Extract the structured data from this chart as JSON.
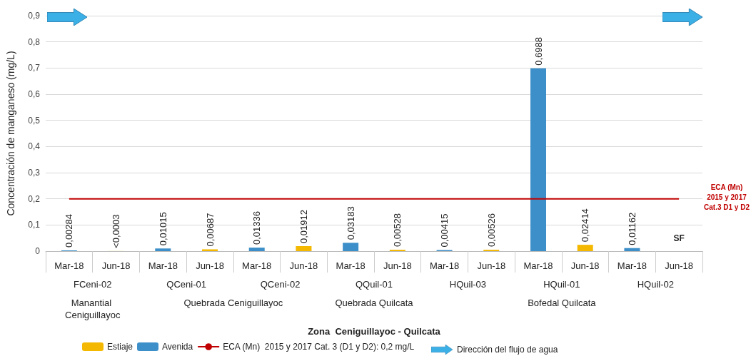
{
  "chart_data": {
    "type": "bar",
    "ylabel": "Concentración de manganeso (mg/L)",
    "categories": [
      "Mar-18",
      "Jun-18",
      "Mar-18",
      "Jun-18",
      "Mar-18",
      "Jun-18",
      "Mar-18",
      "Jun-18",
      "Mar-18",
      "Jun-18",
      "Mar-18",
      "Jun-18",
      "Mar-18",
      "Jun-18"
    ],
    "series": [
      {
        "name": "Estiaje",
        "color": "#f5b800",
        "values": [
          null,
          0.0003,
          null,
          0.00687,
          null,
          0.01912,
          null,
          0.00528,
          null,
          0.00526,
          null,
          0.02414,
          null,
          null
        ],
        "value_labels": [
          null,
          "<0,0003",
          null,
          "0,00687",
          null,
          "0,01912",
          null,
          "0,00528",
          null,
          "0,00526",
          null,
          "0,02414",
          null,
          "SF"
        ]
      },
      {
        "name": "Avenida",
        "color": "#3d8fc9",
        "values": [
          0.00284,
          null,
          0.01015,
          null,
          0.01336,
          null,
          0.03183,
          null,
          0.00415,
          null,
          0.6988,
          null,
          0.01162,
          null
        ],
        "value_labels": [
          "0,00284",
          null,
          "0,01015",
          null,
          "0,01336",
          null,
          "0,03183",
          null,
          "0,00415",
          null,
          "0,6988",
          null,
          "0,01162",
          null
        ]
      },
      {
        "name": "ECA (Mn)  2015 y 2017 Cat. 3 (D1 y D2): 0,2 mg/L",
        "type": "line",
        "color": "#c00000",
        "values": [
          0.2,
          0.2,
          0.2,
          0.2,
          0.2,
          0.2,
          0.2,
          0.2,
          0.2,
          0.2,
          0.2,
          0.2,
          0.2,
          0.2
        ]
      }
    ],
    "annotations": [
      "FCeni-02",
      "QCeni-01",
      "QCeni-02",
      "QQuil-01",
      "HQuil-03",
      "HQuil-01",
      "HQuil-02",
      "Manantial Ceniguillayoc",
      "Quebrada Ceniguillayoc",
      "Quebrada Quilcata",
      "Bofedal Quilcata",
      "Zona  Ceniguillayoc - Quilcata",
      "ECA (Mn)\n2015 y 2017\nCat.3 D1 y D2",
      "Dirección del flujo de agua"
    ],
    "ylim": [
      0,
      0.9
    ],
    "yticks": [
      {
        "value": 0,
        "label": "0"
      },
      {
        "value": 0.1,
        "label": "0,1"
      },
      {
        "value": 0.2,
        "label": "0,2"
      },
      {
        "value": 0.3,
        "label": "0,3"
      },
      {
        "value": 0.4,
        "label": "0,4"
      },
      {
        "value": 0.5,
        "label": "0,5"
      },
      {
        "value": 0.6,
        "label": "0,6"
      },
      {
        "value": 0.7,
        "label": "0,7"
      },
      {
        "value": 0.8,
        "label": "0,8"
      },
      {
        "value": 0.9,
        "label": "0,9"
      }
    ],
    "grid": "y",
    "legend": "bottom",
    "marker": "none",
    "line_style": "solid"
  }
}
